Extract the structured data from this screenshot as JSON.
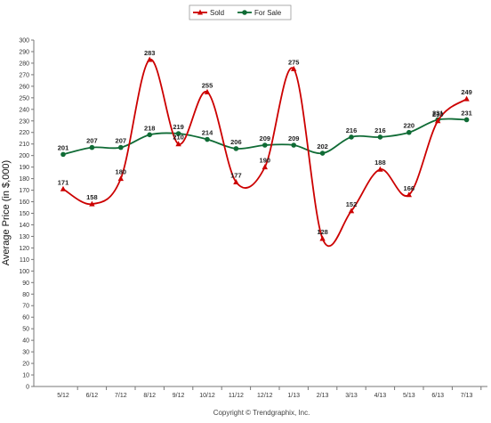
{
  "chart_data": {
    "type": "line",
    "categories": [
      "5/12",
      "6/12",
      "7/12",
      "8/12",
      "9/12",
      "10/12",
      "11/12",
      "12/12",
      "1/13",
      "2/13",
      "3/13",
      "4/13",
      "5/13",
      "6/13",
      "7/13"
    ],
    "series": [
      {
        "name": "Sold",
        "color": "#cc0000",
        "marker": "triangle",
        "values": [
          171,
          158,
          180,
          283,
          210,
          255,
          177,
          190,
          275,
          128,
          152,
          188,
          166,
          230,
          249
        ]
      },
      {
        "name": "For Sale",
        "color": "#0f6b35",
        "marker": "circle",
        "values": [
          201,
          207,
          207,
          218,
          219,
          214,
          206,
          209,
          209,
          202,
          216,
          216,
          220,
          231,
          231
        ]
      }
    ],
    "title": "",
    "xlabel": "",
    "ylabel": "Average Price (in $,000)",
    "ylim": [
      0,
      300
    ],
    "y_tick_step": 10,
    "grid": false,
    "legend_position": "top-center",
    "credit": "Copyright © Trendgraphix, Inc."
  }
}
